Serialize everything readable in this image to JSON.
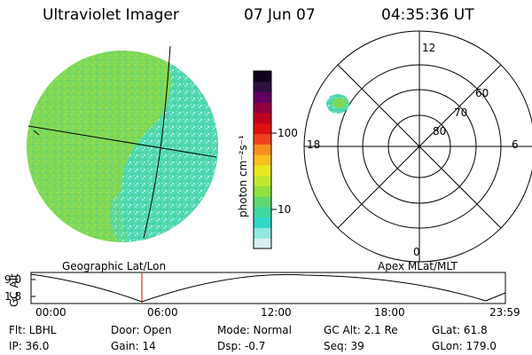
{
  "header": {
    "instrument": "Ultraviolet Imager",
    "date": "07 Jun 07",
    "time": "04:35:36 UT"
  },
  "colorbar": {
    "unit_label": "photon cm⁻²s⁻¹",
    "tick_100": "100",
    "tick_10": "10",
    "colors": [
      "#d8f0f0",
      "#90e8e0",
      "#30d8c8",
      "#40d8a0",
      "#60d870",
      "#90e040",
      "#c0e830",
      "#e8e820",
      "#f8c020",
      "#f89020",
      "#f04020",
      "#e01010",
      "#c00020",
      "#900040",
      "#600060",
      "#301040",
      "#100020"
    ]
  },
  "polar_plot": {
    "label_top": "12",
    "label_bottom": "0",
    "label_left": "18",
    "label_right": "6",
    "ring_60": "60",
    "ring_70": "70",
    "ring_80": "80"
  },
  "labels": {
    "left_map": "Geographic Lat/Lon",
    "right_map": "Apex MLat/MLT"
  },
  "timeline": {
    "axis_title": "GC Alt",
    "y_top": "9.0",
    "y_bottom": "1.8",
    "x_ticks": [
      "00:00",
      "06:00",
      "12:00",
      "18:00",
      "23:59"
    ],
    "marker_color": "#e00000"
  },
  "status": {
    "flt": "Flt: LBHL",
    "ip": "IP: 36.0",
    "door": "Door: Open",
    "gain": "Gain: 14",
    "mode": "Mode: Normal",
    "dsp": "Dsp:   -0.7",
    "gc_alt": "GC Alt: 2.1 Re",
    "seq": "Seq: 39",
    "glat": "GLat:  61.8",
    "glon": "GLon: 179.0"
  }
}
